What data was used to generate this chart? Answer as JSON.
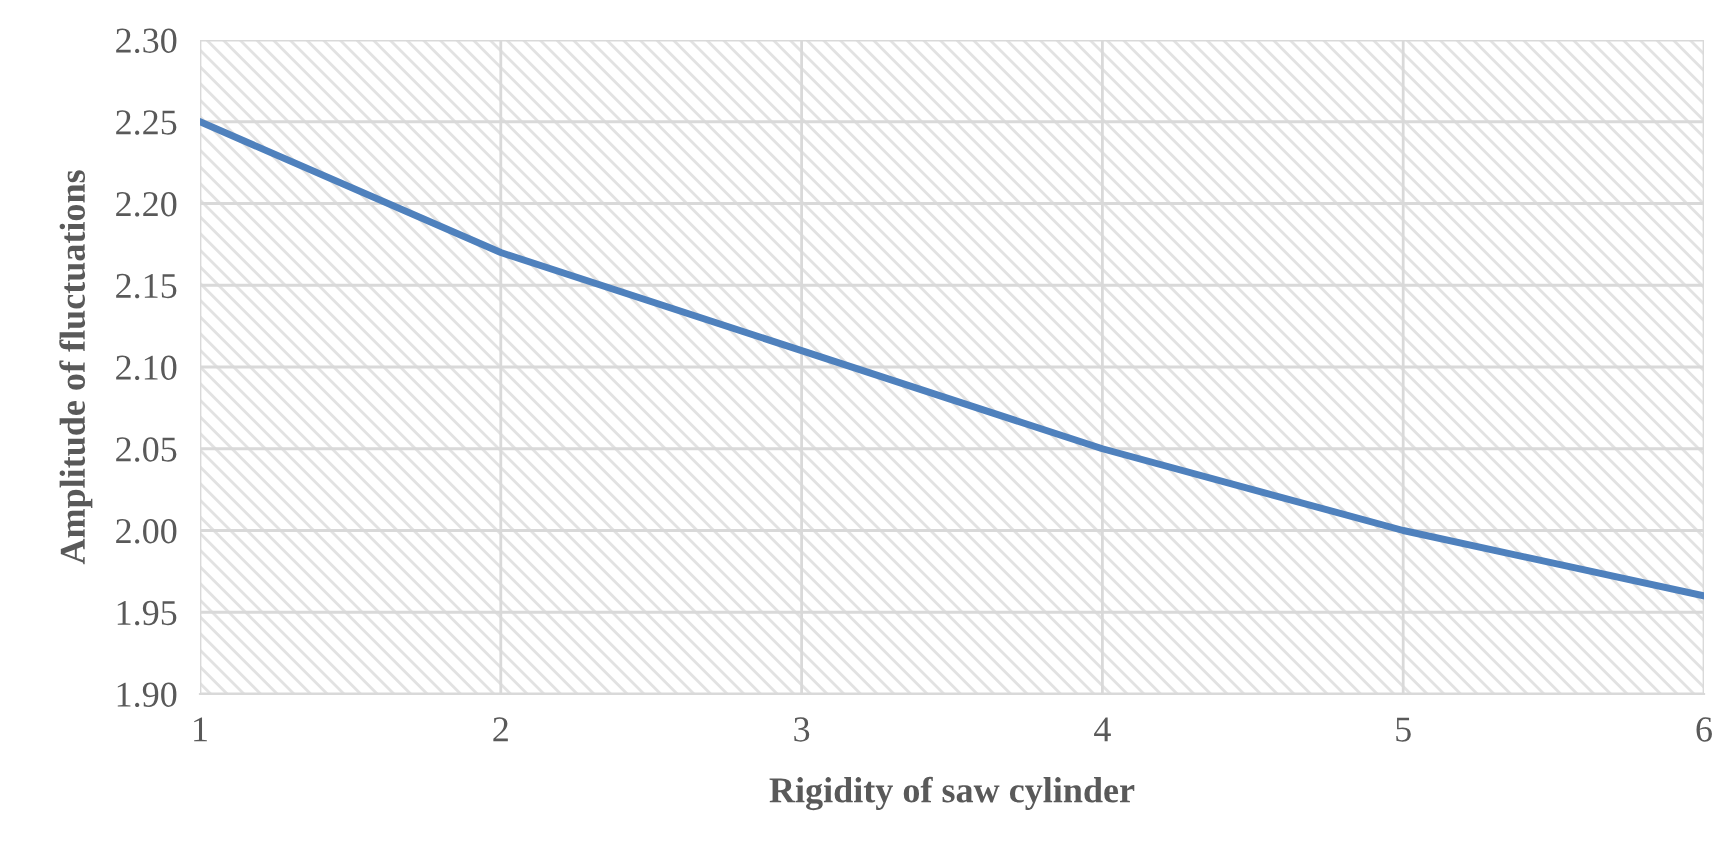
{
  "chart_data": {
    "type": "line",
    "xlabel": "Rigidity of saw cylinder",
    "ylabel": "Amplitude of fluctuations",
    "x": [
      1,
      2,
      3,
      4,
      5,
      6
    ],
    "series": [
      {
        "color": "#4f81bd",
        "values": [
          2.25,
          2.17,
          2.11,
          2.05,
          2.0,
          1.96
        ]
      }
    ],
    "xlim": [
      1,
      6
    ],
    "xticks": [
      1,
      2,
      3,
      4,
      5,
      6
    ],
    "ylim": [
      1.9,
      2.3
    ],
    "yticks": [
      {
        "value": 1.9,
        "label": "1.90"
      },
      {
        "value": 1.95,
        "label": "1.95"
      },
      {
        "value": 2.0,
        "label": "2.00"
      },
      {
        "value": 2.05,
        "label": "2.05"
      },
      {
        "value": 2.1,
        "label": "2.10"
      },
      {
        "value": 2.15,
        "label": "2.15"
      },
      {
        "value": 2.2,
        "label": "2.20"
      },
      {
        "value": 2.25,
        "label": "2.25"
      },
      {
        "value": 2.3,
        "label": "2.30"
      }
    ],
    "grid": true,
    "marker": "none",
    "line_style": "solid",
    "legend": false
  }
}
